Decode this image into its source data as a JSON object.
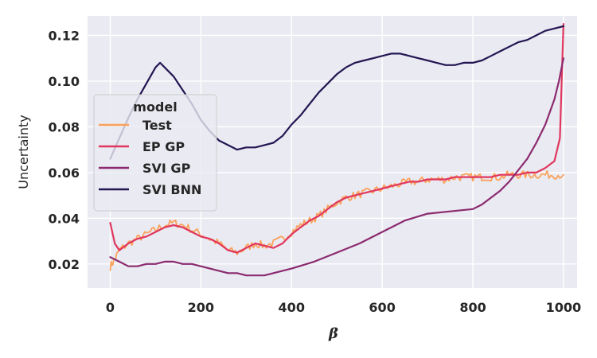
{
  "chart_data": {
    "type": "line",
    "title": "",
    "xlabel": "β",
    "ylabel": "Uncertainty",
    "xlim": [
      -50,
      1030
    ],
    "ylim": [
      0.0095,
      0.1285
    ],
    "xticks": [
      0,
      200,
      400,
      600,
      800,
      1000
    ],
    "xtick_labels": [
      "0",
      "200",
      "400",
      "600",
      "800",
      "1000"
    ],
    "yticks": [
      0.02,
      0.04,
      0.06,
      0.08,
      0.1,
      0.12
    ],
    "ytick_labels": [
      "0.02",
      "0.04",
      "0.06",
      "0.08",
      "0.10",
      "0.12"
    ],
    "grid": true,
    "legend": {
      "title": "model",
      "position": "upper-left",
      "entries": [
        "Test",
        "EP GP",
        "SVI GP",
        "SVI BNN"
      ]
    },
    "series": [
      {
        "name": "Test",
        "color": "#f9a25b",
        "noisy": true,
        "x": [
          0,
          10,
          20,
          40,
          60,
          80,
          100,
          120,
          140,
          160,
          180,
          200,
          220,
          240,
          260,
          280,
          300,
          320,
          340,
          360,
          380,
          400,
          420,
          440,
          460,
          480,
          500,
          520,
          540,
          560,
          580,
          600,
          620,
          640,
          660,
          680,
          700,
          720,
          740,
          760,
          780,
          800,
          820,
          840,
          860,
          880,
          900,
          920,
          940,
          960,
          980,
          1000
        ],
        "values": [
          0.019,
          0.022,
          0.026,
          0.029,
          0.031,
          0.033,
          0.035,
          0.037,
          0.038,
          0.037,
          0.035,
          0.033,
          0.031,
          0.029,
          0.026,
          0.025,
          0.027,
          0.029,
          0.028,
          0.029,
          0.031,
          0.034,
          0.037,
          0.039,
          0.041,
          0.044,
          0.047,
          0.049,
          0.05,
          0.051,
          0.052,
          0.053,
          0.054,
          0.055,
          0.056,
          0.056,
          0.057,
          0.057,
          0.057,
          0.058,
          0.058,
          0.058,
          0.058,
          0.058,
          0.058,
          0.059,
          0.059,
          0.059,
          0.059,
          0.059,
          0.059,
          0.059
        ]
      },
      {
        "name": "EP GP",
        "color": "#e0365e",
        "noisy": false,
        "x": [
          0,
          10,
          20,
          40,
          60,
          80,
          100,
          120,
          140,
          160,
          180,
          200,
          220,
          240,
          260,
          280,
          300,
          320,
          340,
          360,
          380,
          400,
          420,
          440,
          460,
          480,
          500,
          520,
          540,
          560,
          580,
          600,
          620,
          640,
          660,
          680,
          700,
          720,
          740,
          760,
          780,
          800,
          820,
          840,
          860,
          880,
          900,
          920,
          940,
          960,
          980,
          992,
          1000
        ],
        "values": [
          0.038,
          0.029,
          0.026,
          0.029,
          0.031,
          0.032,
          0.034,
          0.036,
          0.037,
          0.036,
          0.034,
          0.032,
          0.031,
          0.029,
          0.026,
          0.025,
          0.027,
          0.029,
          0.028,
          0.027,
          0.029,
          0.033,
          0.036,
          0.039,
          0.041,
          0.044,
          0.047,
          0.049,
          0.05,
          0.051,
          0.052,
          0.053,
          0.054,
          0.055,
          0.056,
          0.056,
          0.057,
          0.057,
          0.057,
          0.058,
          0.058,
          0.058,
          0.058,
          0.058,
          0.059,
          0.059,
          0.059,
          0.06,
          0.06,
          0.062,
          0.065,
          0.075,
          0.125
        ]
      },
      {
        "name": "SVI GP",
        "color": "#8b2a6f",
        "noisy": false,
        "x": [
          0,
          20,
          40,
          60,
          80,
          100,
          120,
          140,
          160,
          180,
          200,
          220,
          240,
          260,
          280,
          300,
          320,
          340,
          360,
          380,
          400,
          450,
          500,
          550,
          600,
          650,
          700,
          750,
          800,
          820,
          840,
          860,
          880,
          900,
          920,
          940,
          960,
          980,
          990,
          1000
        ],
        "values": [
          0.023,
          0.021,
          0.019,
          0.019,
          0.02,
          0.02,
          0.021,
          0.021,
          0.02,
          0.02,
          0.019,
          0.018,
          0.017,
          0.016,
          0.016,
          0.015,
          0.015,
          0.015,
          0.016,
          0.017,
          0.018,
          0.021,
          0.025,
          0.029,
          0.034,
          0.039,
          0.042,
          0.043,
          0.044,
          0.046,
          0.049,
          0.052,
          0.056,
          0.061,
          0.066,
          0.073,
          0.081,
          0.092,
          0.1,
          0.11
        ]
      },
      {
        "name": "SVI BNN",
        "color": "#231652",
        "noisy": false,
        "x": [
          0,
          20,
          40,
          60,
          80,
          100,
          110,
          120,
          140,
          160,
          180,
          200,
          220,
          240,
          260,
          280,
          300,
          320,
          340,
          360,
          380,
          400,
          420,
          440,
          460,
          480,
          500,
          520,
          540,
          560,
          580,
          600,
          620,
          640,
          660,
          680,
          700,
          720,
          740,
          760,
          780,
          800,
          820,
          840,
          860,
          880,
          900,
          920,
          940,
          960,
          980,
          1000
        ],
        "values": [
          0.066,
          0.075,
          0.084,
          0.092,
          0.099,
          0.106,
          0.108,
          0.106,
          0.102,
          0.096,
          0.09,
          0.083,
          0.078,
          0.074,
          0.072,
          0.07,
          0.071,
          0.071,
          0.072,
          0.073,
          0.076,
          0.081,
          0.085,
          0.09,
          0.095,
          0.099,
          0.103,
          0.106,
          0.108,
          0.109,
          0.11,
          0.111,
          0.112,
          0.112,
          0.111,
          0.11,
          0.109,
          0.108,
          0.107,
          0.107,
          0.108,
          0.108,
          0.109,
          0.111,
          0.113,
          0.115,
          0.117,
          0.118,
          0.12,
          0.122,
          0.123,
          0.124
        ]
      }
    ]
  }
}
